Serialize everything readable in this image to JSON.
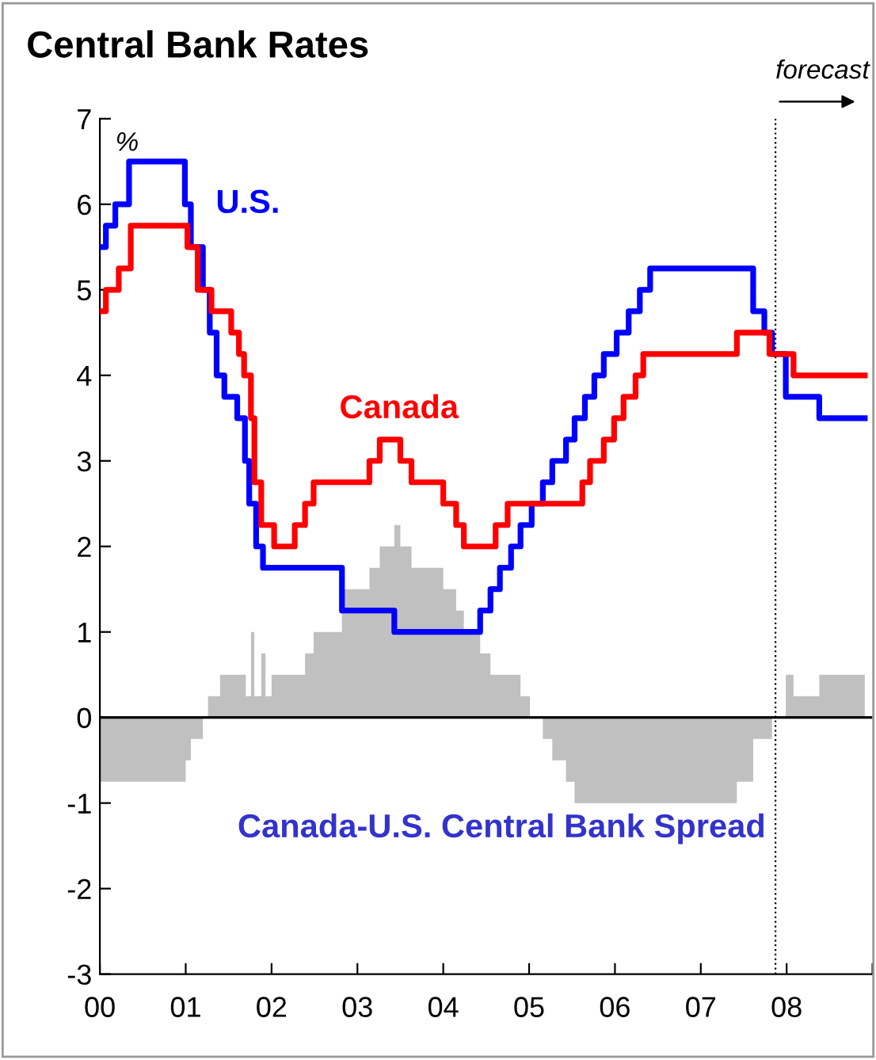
{
  "chart_data": {
    "type": "step",
    "title": "Central Bank Rates",
    "ylabel": "%",
    "annotations": [
      "Canada-U.S. Central Bank Spread"
    ],
    "xlim": [
      2000,
      2009
    ],
    "xticks": [
      {
        "value": 2000,
        "label": "00"
      },
      {
        "value": 2001,
        "label": "01"
      },
      {
        "value": 2002,
        "label": "02"
      },
      {
        "value": 2003,
        "label": "03"
      },
      {
        "value": 2004,
        "label": "04"
      },
      {
        "value": 2005,
        "label": "05"
      },
      {
        "value": 2006,
        "label": "06"
      },
      {
        "value": 2007,
        "label": "07"
      },
      {
        "value": 2008,
        "label": "08"
      },
      {
        "value": 2009,
        "label": null
      }
    ],
    "ylim": [
      -3,
      7
    ],
    "yticks": [
      -3,
      -2,
      -1,
      0,
      1,
      2,
      3,
      4,
      5,
      6,
      7
    ],
    "grid": false,
    "legend": false,
    "ref_lines": [
      {
        "axis": "y",
        "value": 0,
        "label": null,
        "color": "#000000",
        "line_style": "solid"
      },
      {
        "axis": "x",
        "value": 2007.87,
        "label": "forecast",
        "color": "#000000",
        "line_style": "dotted"
      }
    ],
    "series": [
      {
        "type": "area",
        "color": "#c0c0c0",
        "x": [
          2000.0,
          2001.0,
          2001.06,
          2001.2,
          2001.26,
          2001.4,
          2001.7,
          2001.76,
          2001.8,
          2001.88,
          2001.93,
          2002.0,
          2002.25,
          2002.39,
          2002.49,
          2002.82,
          2003.14,
          2003.26,
          2003.43,
          2003.5,
          2003.63,
          2004.0,
          2004.15,
          2004.24,
          2004.43,
          2004.55,
          2004.66,
          2004.9,
          2005.01,
          2005.16,
          2005.27,
          2005.43,
          2005.53,
          2007.42,
          2007.61,
          2007.74,
          2007.83,
          2007.99,
          2008.08,
          2008.38,
          2008.91
        ],
        "values": [
          -0.75,
          -0.5,
          -0.25,
          0,
          0.25,
          0.5,
          0.25,
          1.0,
          0.25,
          0.75,
          0.25,
          0.5,
          0.5,
          0.75,
          1.0,
          1.5,
          1.75,
          2.0,
          2.25,
          2.0,
          1.75,
          1.5,
          1.25,
          1.0,
          0.75,
          0.5,
          0.5,
          0.25,
          0,
          -0.25,
          -0.5,
          -0.75,
          -1.0,
          -0.75,
          -0.25,
          -0.25,
          0,
          0.5,
          0.25,
          0.5,
          0.5
        ]
      },
      {
        "name": "U.S.",
        "color": "#0000ff",
        "x": [
          2000.0,
          2000.07,
          2000.18,
          2000.34,
          2000.99,
          2001.06,
          2001.2,
          2001.28,
          2001.36,
          2001.45,
          2001.6,
          2001.69,
          2001.74,
          2001.82,
          2001.9,
          2002.82,
          2003.43,
          2004.43,
          2004.55,
          2004.66,
          2004.79,
          2004.9,
          2005.03,
          2005.16,
          2005.27,
          2005.43,
          2005.53,
          2005.65,
          2005.76,
          2005.87,
          2006.02,
          2006.16,
          2006.29,
          2006.41,
          2007.61,
          2007.74,
          2007.83,
          2007.99,
          2008.38,
          2008.91
        ],
        "values": [
          5.5,
          5.75,
          6.0,
          6.5,
          6.0,
          5.5,
          5.0,
          4.5,
          4.0,
          3.75,
          3.5,
          3.0,
          2.5,
          2.0,
          1.75,
          1.25,
          1.0,
          1.25,
          1.5,
          1.75,
          2.0,
          2.25,
          2.5,
          2.75,
          3.0,
          3.25,
          3.5,
          3.75,
          4.0,
          4.25,
          4.5,
          4.75,
          5.0,
          5.25,
          4.75,
          4.5,
          4.25,
          3.75,
          3.5,
          3.5
        ]
      },
      {
        "name": "Canada",
        "color": "#ff0000",
        "x": [
          2000.0,
          2000.07,
          2000.22,
          2000.36,
          2001.02,
          2001.14,
          2001.3,
          2001.53,
          2001.62,
          2001.68,
          2001.76,
          2001.8,
          2001.88,
          2002.03,
          2002.27,
          2002.39,
          2002.49,
          2003.14,
          2003.26,
          2003.5,
          2003.63,
          2004.0,
          2004.15,
          2004.24,
          2004.61,
          2004.75,
          2005.62,
          2005.71,
          2005.87,
          2005.99,
          2006.1,
          2006.24,
          2006.33,
          2007.42,
          2007.8,
          2008.08,
          2008.91
        ],
        "values": [
          4.75,
          5.0,
          5.25,
          5.75,
          5.5,
          5.0,
          4.75,
          4.5,
          4.25,
          4.0,
          3.5,
          2.75,
          2.25,
          2.0,
          2.25,
          2.5,
          2.75,
          3.0,
          3.25,
          3.0,
          2.75,
          2.5,
          2.25,
          2.0,
          2.25,
          2.5,
          2.75,
          3.0,
          3.25,
          3.5,
          3.75,
          4.0,
          4.25,
          4.5,
          4.25,
          4.0,
          4.0
        ]
      }
    ]
  }
}
